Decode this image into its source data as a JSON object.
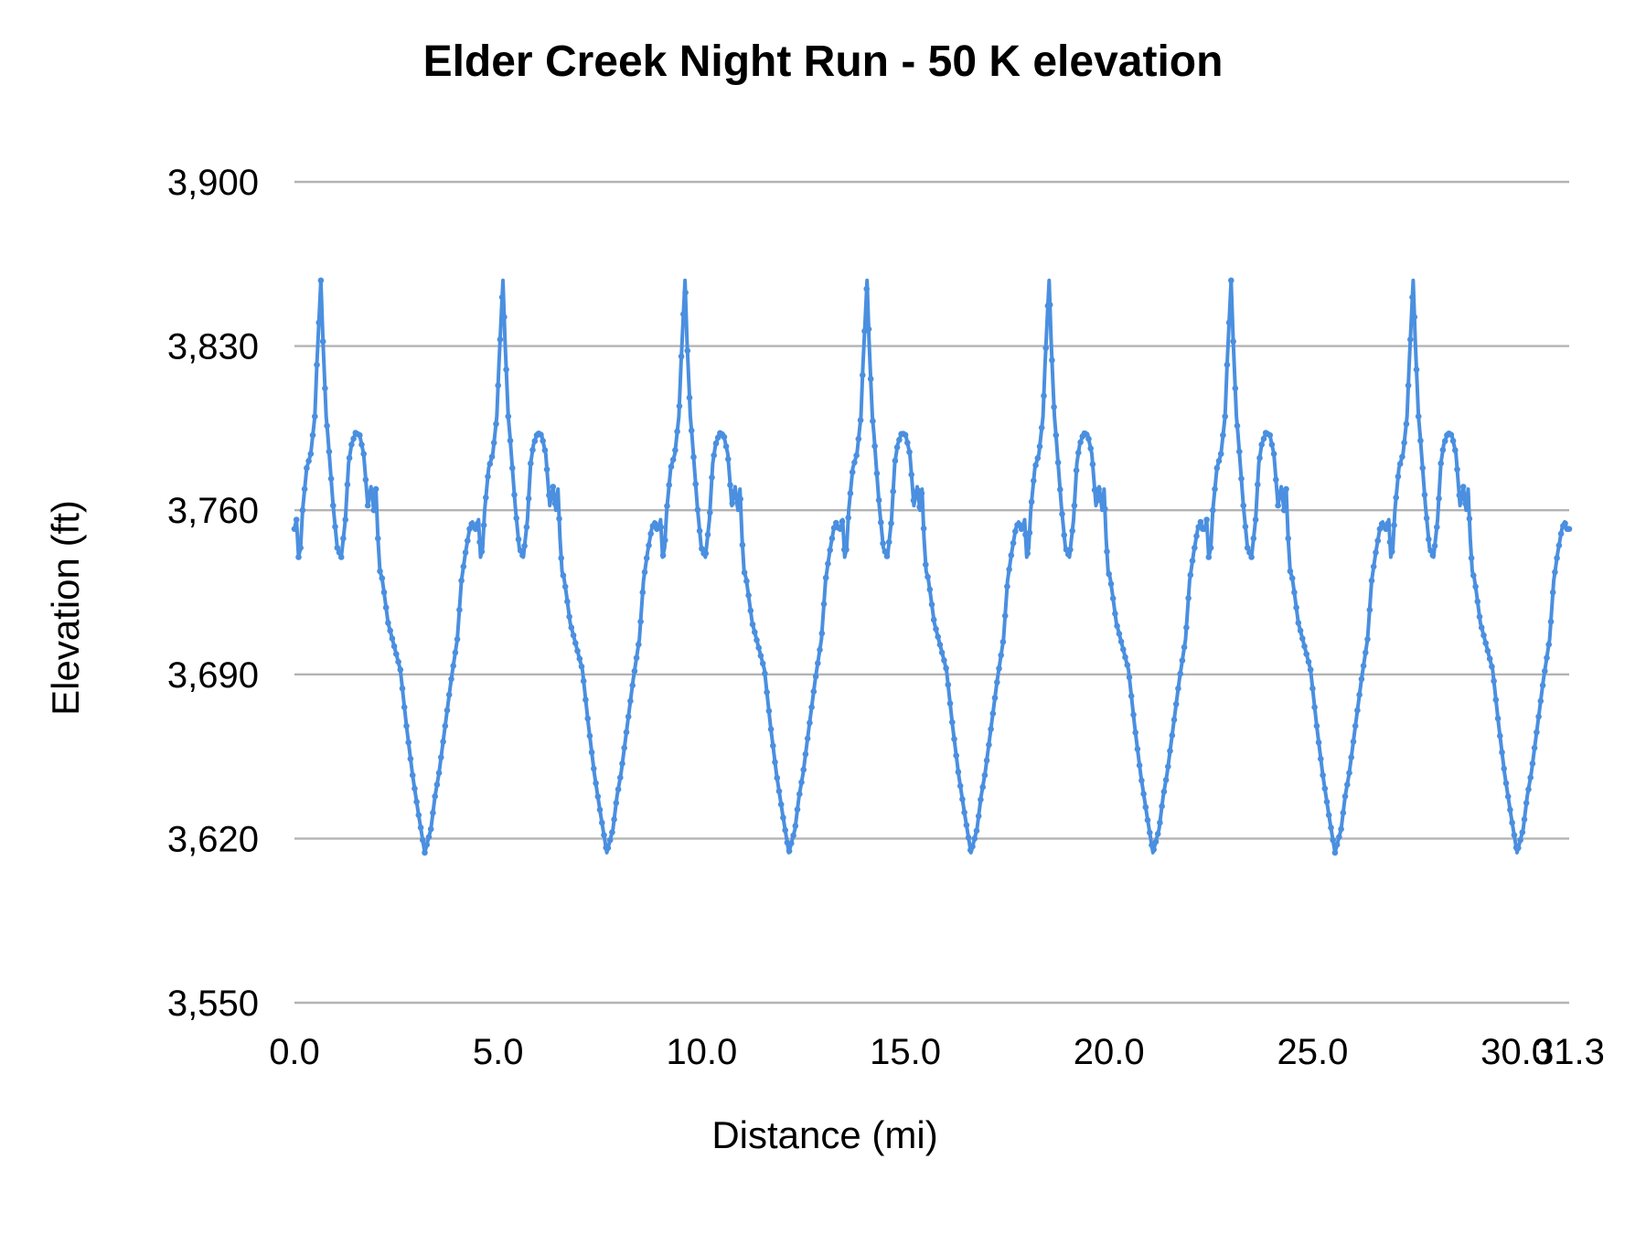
{
  "chart_data": {
    "type": "line",
    "title": "Elder Creek Night Run - 50 K elevation",
    "xlabel": "Distance (mi)",
    "ylabel": "Elevation (ft)",
    "xlim": [
      0,
      31.3
    ],
    "ylim": [
      3550,
      3900
    ],
    "x_ticks": [
      0,
      5,
      10,
      15,
      20,
      25,
      30,
      31.3
    ],
    "x_tick_labels": [
      "0.0",
      "5.0",
      "10.0",
      "15.0",
      "20.0",
      "25.0",
      "30.0",
      "31.3"
    ],
    "y_ticks": [
      3550,
      3620,
      3690,
      3760,
      3830,
      3900
    ],
    "y_tick_labels": [
      "3,550",
      "3,620",
      "3,690",
      "3,760",
      "3,830",
      "3,900"
    ],
    "grid": "horizontal",
    "legend": "none",
    "line_color": "#4a8fe0",
    "period_mi": 4.47,
    "series": [
      {
        "cycle_profile_x": [
          0,
          0.05,
          0.1,
          0.15,
          0.2,
          0.3,
          0.4,
          0.5,
          0.55,
          0.6,
          0.65,
          0.7,
          0.75,
          0.78,
          0.82,
          0.88,
          0.95,
          1.05,
          1.15,
          1.25,
          1.33,
          1.4,
          1.5,
          1.6,
          1.7,
          1.8,
          1.88,
          1.95,
          2.0,
          2.05,
          2.1,
          2.15,
          2.2,
          2.3,
          2.45,
          2.6,
          2.75,
          2.9,
          3.05,
          3.2,
          3.35,
          3.45,
          3.55,
          3.7,
          3.85,
          4.0,
          4.1,
          4.2,
          4.3,
          4.37,
          4.42
        ],
        "cycle_profile_y": [
          3752,
          3756,
          3740,
          3744,
          3760,
          3778,
          3784,
          3800,
          3822,
          3840,
          3858,
          3832,
          3812,
          3800,
          3792,
          3778,
          3762,
          3744,
          3740,
          3756,
          3780,
          3788,
          3793,
          3792,
          3784,
          3762,
          3770,
          3760,
          3769,
          3748,
          3734,
          3731,
          3725,
          3712,
          3702,
          3692,
          3668,
          3647,
          3630,
          3614,
          3624,
          3638,
          3648,
          3668,
          3688,
          3705,
          3730,
          3742,
          3752,
          3755,
          3752
        ]
      }
    ]
  }
}
